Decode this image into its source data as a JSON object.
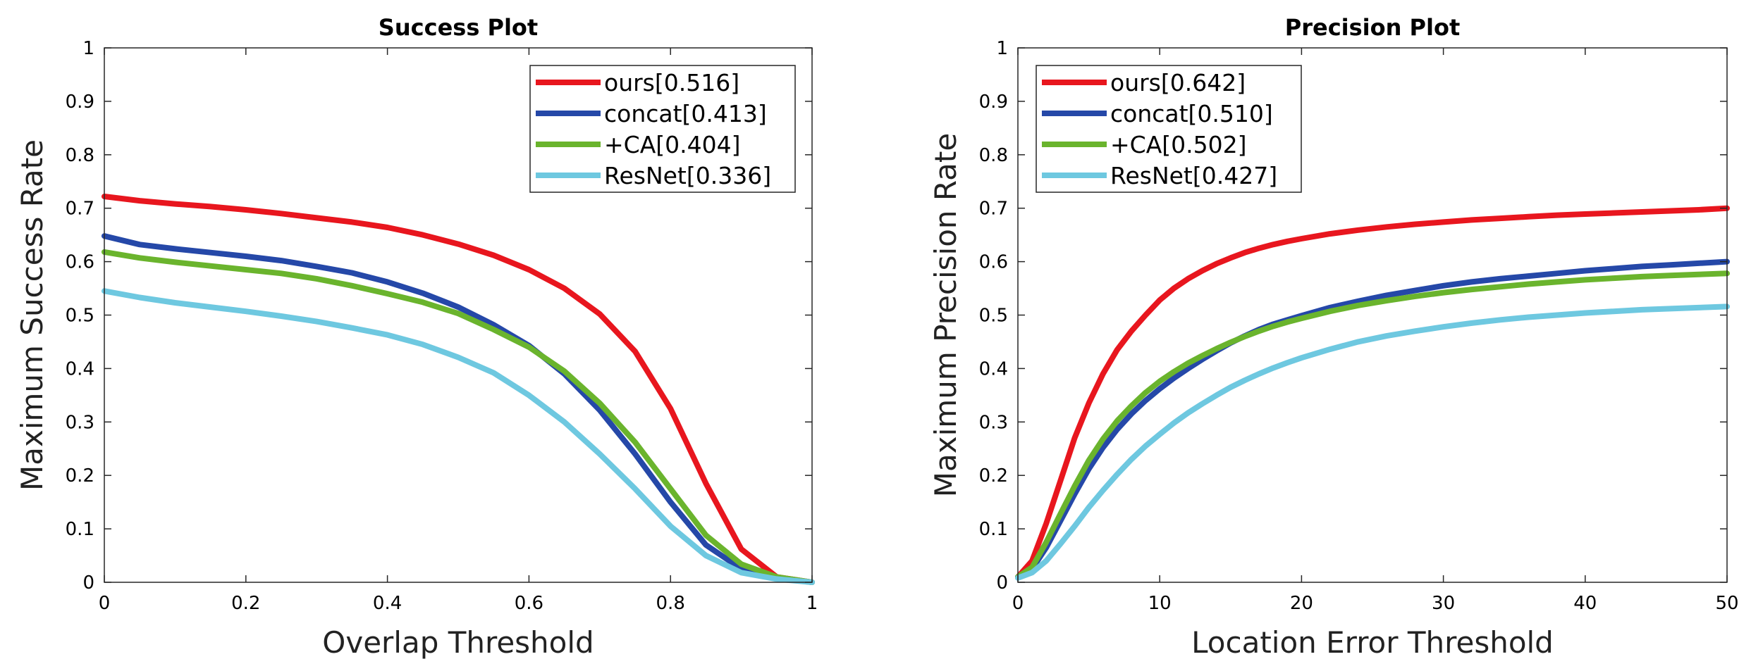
{
  "chart_data": [
    {
      "type": "line",
      "title": "Success Plot",
      "xlabel": "Overlap Threshold",
      "ylabel": "Maximum Success Rate",
      "xlim": [
        0,
        1
      ],
      "ylim": [
        0,
        1
      ],
      "xticks": [
        0,
        0.2,
        0.4,
        0.6,
        0.8,
        1
      ],
      "xtick_labels": [
        "0",
        "0.2",
        "0.4",
        "0.6",
        "0.8",
        "1"
      ],
      "yticks": [
        0,
        0.1,
        0.2,
        0.3,
        0.4,
        0.5,
        0.6,
        0.7,
        0.8,
        0.9,
        1
      ],
      "ytick_labels": [
        "0",
        "0.1",
        "0.2",
        "0.3",
        "0.4",
        "0.5",
        "0.6",
        "0.7",
        "0.8",
        "0.9",
        "1"
      ],
      "legend_position": "top-right",
      "x": [
        0,
        0.05,
        0.1,
        0.15,
        0.2,
        0.25,
        0.3,
        0.35,
        0.4,
        0.45,
        0.5,
        0.55,
        0.6,
        0.65,
        0.7,
        0.75,
        0.8,
        0.85,
        0.9,
        0.95,
        1
      ],
      "series": [
        {
          "name": "ours[0.516]",
          "color": "#e8161e",
          "values": [
            0.722,
            0.714,
            0.708,
            0.703,
            0.697,
            0.69,
            0.682,
            0.674,
            0.664,
            0.65,
            0.633,
            0.612,
            0.585,
            0.55,
            0.502,
            0.432,
            0.325,
            0.185,
            0.062,
            0.01,
            0.0
          ]
        },
        {
          "name": "concat[0.413]",
          "color": "#2548a8",
          "values": [
            0.648,
            0.632,
            0.624,
            0.617,
            0.61,
            0.602,
            0.591,
            0.579,
            0.562,
            0.541,
            0.515,
            0.482,
            0.443,
            0.39,
            0.322,
            0.24,
            0.15,
            0.07,
            0.025,
            0.008,
            0.0
          ]
        },
        {
          "name": "+CA[0.404]",
          "color": "#6ab42d",
          "values": [
            0.618,
            0.607,
            0.599,
            0.592,
            0.585,
            0.578,
            0.568,
            0.555,
            0.54,
            0.524,
            0.503,
            0.473,
            0.44,
            0.395,
            0.335,
            0.262,
            0.175,
            0.088,
            0.034,
            0.01,
            0.0
          ]
        },
        {
          "name": "ResNet[0.336]",
          "color": "#6ec8e0",
          "values": [
            0.545,
            0.533,
            0.523,
            0.515,
            0.507,
            0.498,
            0.488,
            0.476,
            0.463,
            0.445,
            0.421,
            0.392,
            0.35,
            0.3,
            0.24,
            0.175,
            0.105,
            0.05,
            0.018,
            0.006,
            0.0
          ]
        }
      ]
    },
    {
      "type": "line",
      "title": "Precision Plot",
      "xlabel": "Location Error Threshold",
      "ylabel": "Maximum Precision Rate",
      "xlim": [
        0,
        50
      ],
      "ylim": [
        0,
        1
      ],
      "xticks": [
        0,
        10,
        20,
        30,
        40,
        50
      ],
      "xtick_labels": [
        "0",
        "10",
        "20",
        "30",
        "40",
        "50"
      ],
      "yticks": [
        0,
        0.1,
        0.2,
        0.3,
        0.4,
        0.5,
        0.6,
        0.7,
        0.8,
        0.9,
        1
      ],
      "ytick_labels": [
        "0",
        "0.1",
        "0.2",
        "0.3",
        "0.4",
        "0.5",
        "0.6",
        "0.7",
        "0.8",
        "0.9",
        "1"
      ],
      "legend_position": "top-left",
      "x": [
        0,
        1,
        2,
        3,
        4,
        5,
        6,
        7,
        8,
        9,
        10,
        11,
        12,
        13,
        14,
        15,
        16,
        17,
        18,
        19,
        20,
        22,
        24,
        26,
        28,
        30,
        32,
        34,
        36,
        38,
        40,
        42,
        44,
        46,
        48,
        50
      ],
      "series": [
        {
          "name": "ours[0.642]",
          "color": "#e8161e",
          "values": [
            0.01,
            0.04,
            0.11,
            0.19,
            0.27,
            0.335,
            0.39,
            0.435,
            0.47,
            0.5,
            0.528,
            0.55,
            0.568,
            0.583,
            0.596,
            0.607,
            0.617,
            0.625,
            0.632,
            0.638,
            0.643,
            0.652,
            0.659,
            0.665,
            0.67,
            0.674,
            0.678,
            0.681,
            0.684,
            0.687,
            0.689,
            0.691,
            0.693,
            0.695,
            0.697,
            0.7
          ]
        },
        {
          "name": "concat[0.510]",
          "color": "#2548a8",
          "values": [
            0.01,
            0.025,
            0.065,
            0.115,
            0.165,
            0.212,
            0.252,
            0.286,
            0.315,
            0.34,
            0.362,
            0.382,
            0.4,
            0.417,
            0.433,
            0.448,
            0.461,
            0.473,
            0.483,
            0.491,
            0.499,
            0.514,
            0.526,
            0.537,
            0.546,
            0.555,
            0.562,
            0.568,
            0.573,
            0.578,
            0.583,
            0.587,
            0.591,
            0.594,
            0.597,
            0.6
          ]
        },
        {
          "name": "+CA[0.502]",
          "color": "#6ab42d",
          "values": [
            0.01,
            0.028,
            0.075,
            0.128,
            0.18,
            0.228,
            0.268,
            0.302,
            0.33,
            0.355,
            0.376,
            0.394,
            0.41,
            0.424,
            0.437,
            0.449,
            0.46,
            0.47,
            0.479,
            0.487,
            0.494,
            0.507,
            0.518,
            0.527,
            0.535,
            0.542,
            0.548,
            0.553,
            0.558,
            0.562,
            0.566,
            0.569,
            0.572,
            0.574,
            0.576,
            0.578
          ]
        },
        {
          "name": "ResNet[0.427]",
          "color": "#6ec8e0",
          "values": [
            0.008,
            0.018,
            0.04,
            0.072,
            0.105,
            0.14,
            0.172,
            0.202,
            0.23,
            0.255,
            0.277,
            0.298,
            0.317,
            0.334,
            0.35,
            0.365,
            0.378,
            0.39,
            0.401,
            0.411,
            0.42,
            0.436,
            0.45,
            0.461,
            0.47,
            0.478,
            0.485,
            0.491,
            0.496,
            0.5,
            0.504,
            0.507,
            0.51,
            0.512,
            0.514,
            0.516
          ]
        }
      ]
    }
  ]
}
